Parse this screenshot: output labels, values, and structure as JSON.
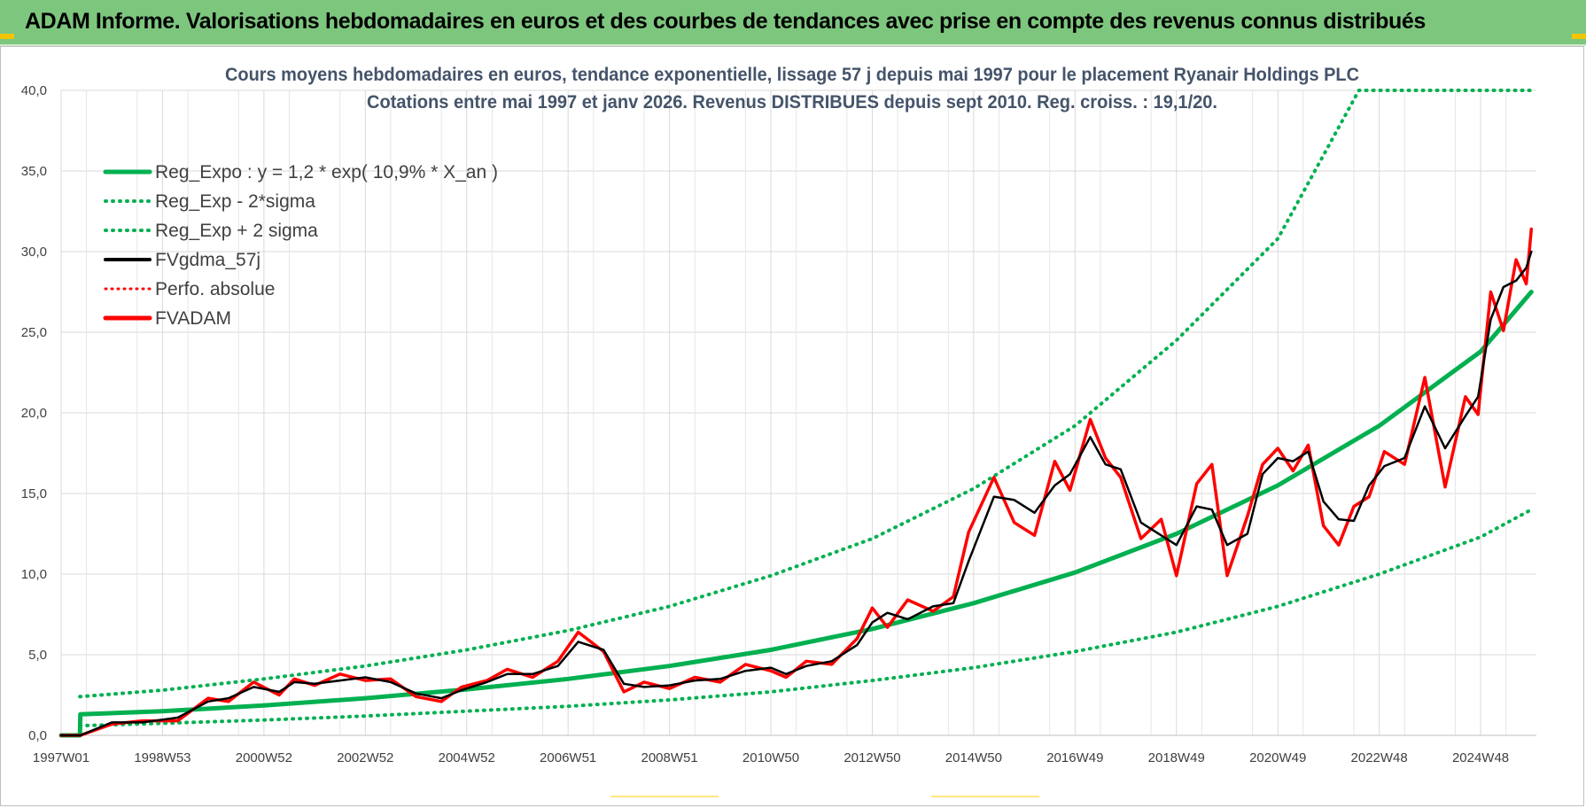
{
  "header": {
    "title": "ADAM Informe. Valorisations hebdomadaires en euros et des courbes de tendances avec prise en compte des revenus connus distribués"
  },
  "colors": {
    "header_bg": "#7dc67e",
    "green": "#00b050",
    "red": "#ff0000",
    "black": "#000000",
    "title_text": "#44546a"
  },
  "chart_data": {
    "type": "line",
    "title": "Cours moyens hebdomadaires en euros, tendance exponentielle, lissage 57 j depuis mai 1997 pour le placement Ryanair Holdings PLC",
    "subtitle": "Cotations entre mai 1997 et janv 2026. Revenus DISTRIBUES depuis sept 2010. Reg. croiss. : 19,1/20.",
    "xlabel": "",
    "ylabel": "",
    "ylim": [
      0,
      40
    ],
    "xlim": [
      1997.0,
      2026.1
    ],
    "grid": true,
    "legend_position": "top-left",
    "y_ticks": [
      "0,0",
      "5,0",
      "10,0",
      "15,0",
      "20,0",
      "25,0",
      "30,0",
      "35,0",
      "40,0"
    ],
    "x_ticks": [
      {
        "label": "1997W01",
        "x": 1997.0
      },
      {
        "label": "1998W53",
        "x": 1999.0
      },
      {
        "label": "2000W52",
        "x": 2001.0
      },
      {
        "label": "2002W52",
        "x": 2003.0
      },
      {
        "label": "2004W52",
        "x": 2005.0
      },
      {
        "label": "2006W51",
        "x": 2007.0
      },
      {
        "label": "2008W51",
        "x": 2009.0
      },
      {
        "label": "2010W50",
        "x": 2011.0
      },
      {
        "label": "2012W50",
        "x": 2013.0
      },
      {
        "label": "2014W50",
        "x": 2015.0
      },
      {
        "label": "2016W49",
        "x": 2017.0
      },
      {
        "label": "2018W49",
        "x": 2019.0
      },
      {
        "label": "2020W49",
        "x": 2021.0
      },
      {
        "label": "2022W48",
        "x": 2023.0
      },
      {
        "label": "2024W48",
        "x": 2025.0
      }
    ],
    "legend": [
      {
        "name": "Reg_Expo : y = 1,2 * exp( 10,9% *  X_an )",
        "color": "#00b050",
        "style": "solid"
      },
      {
        "name": "Reg_Exp - 2*sigma",
        "color": "#00b050",
        "style": "dotted"
      },
      {
        "name": "Reg_Exp + 2 sigma",
        "color": "#00b050",
        "style": "dotted"
      },
      {
        "name": "FVgdma_57j",
        "color": "#000000",
        "style": "solid"
      },
      {
        "name": "Perfo. absolue",
        "color": "#ff0000",
        "style": "dotted"
      },
      {
        "name": "FVADAM",
        "color": "#ff0000",
        "style": "solid"
      }
    ],
    "series": [
      {
        "name": "Reg_Expo : y = 1,2 * exp( 10,9% *  X_an )",
        "x": [
          1997.0,
          1997.37,
          1997.38,
          1999.0,
          2001.0,
          2003.0,
          2005.0,
          2007.0,
          2009.0,
          2011.0,
          2013.0,
          2015.0,
          2017.0,
          2019.0,
          2021.0,
          2023.0,
          2025.0,
          2026.0
        ],
        "y": [
          0,
          0,
          1.3,
          1.5,
          1.85,
          2.3,
          2.85,
          3.5,
          4.3,
          5.3,
          6.6,
          8.2,
          10.1,
          12.5,
          15.5,
          19.2,
          23.8,
          27.5
        ]
      },
      {
        "name": "Reg_Exp - 2*sigma",
        "x": [
          1997.37,
          1999.0,
          2001.0,
          2003.0,
          2005.0,
          2007.0,
          2009.0,
          2011.0,
          2013.0,
          2015.0,
          2017.0,
          2019.0,
          2021.0,
          2023.0,
          2025.0,
          2026.0
        ],
        "y": [
          0.6,
          0.75,
          0.95,
          1.2,
          1.5,
          1.8,
          2.2,
          2.7,
          3.4,
          4.2,
          5.2,
          6.4,
          8.0,
          10.0,
          12.3,
          14.0
        ]
      },
      {
        "name": "Reg_Exp + 2 sigma",
        "x": [
          1997.37,
          1999.0,
          2001.0,
          2003.0,
          2005.0,
          2007.0,
          2009.0,
          2011.0,
          2013.0,
          2015.0,
          2017.0,
          2019.0,
          2021.0,
          2022.6,
          2026.0
        ],
        "y": [
          2.4,
          2.8,
          3.5,
          4.3,
          5.3,
          6.5,
          8.0,
          9.9,
          12.2,
          15.3,
          19.2,
          24.5,
          30.8,
          40.0,
          40.0
        ]
      },
      {
        "name": "FVgdma_57j",
        "x": [
          1997.0,
          1997.38,
          1998.0,
          1998.6,
          1999.3,
          1999.9,
          2000.3,
          2000.8,
          2001.3,
          2001.6,
          2002.0,
          2002.5,
          2003.0,
          2003.5,
          2004.0,
          2004.5,
          2004.9,
          2005.4,
          2005.8,
          2006.3,
          2006.8,
          2007.2,
          2007.7,
          2008.1,
          2008.5,
          2009.0,
          2009.5,
          2010.0,
          2010.5,
          2011.0,
          2011.3,
          2011.7,
          2012.2,
          2012.7,
          2013.0,
          2013.3,
          2013.7,
          2014.2,
          2014.6,
          2014.9,
          2015.4,
          2015.8,
          2016.2,
          2016.6,
          2016.9,
          2017.3,
          2017.6,
          2017.9,
          2018.3,
          2018.7,
          2019.0,
          2019.4,
          2019.7,
          2020.0,
          2020.4,
          2020.7,
          2021.0,
          2021.3,
          2021.6,
          2021.9,
          2022.2,
          2022.5,
          2022.8,
          2023.1,
          2023.5,
          2023.9,
          2024.3,
          2024.7,
          2024.95,
          2025.2,
          2025.45,
          2025.7,
          2025.9,
          2026.0
        ],
        "y": [
          0,
          0,
          0.8,
          0.8,
          1.1,
          2.1,
          2.3,
          3.0,
          2.7,
          3.3,
          3.2,
          3.4,
          3.6,
          3.3,
          2.6,
          2.3,
          2.8,
          3.3,
          3.8,
          3.8,
          4.3,
          5.8,
          5.3,
          3.2,
          3.0,
          3.1,
          3.4,
          3.5,
          4.0,
          4.2,
          3.8,
          4.3,
          4.6,
          5.6,
          7.0,
          7.6,
          7.2,
          8.0,
          8.2,
          10.8,
          14.8,
          14.6,
          13.8,
          15.5,
          16.2,
          18.5,
          16.8,
          16.5,
          13.2,
          12.4,
          11.8,
          14.2,
          14.0,
          11.8,
          12.5,
          16.2,
          17.2,
          17.0,
          17.6,
          14.5,
          13.4,
          13.3,
          15.5,
          16.7,
          17.2,
          20.4,
          17.8,
          19.8,
          21.0,
          25.8,
          27.8,
          28.2,
          29.0,
          30.0
        ]
      },
      {
        "name": "FVADAM",
        "x": [
          1997.0,
          1997.38,
          1998.0,
          1998.6,
          1999.3,
          1999.9,
          2000.3,
          2000.8,
          2001.3,
          2001.6,
          2002.0,
          2002.5,
          2003.0,
          2003.5,
          2004.0,
          2004.5,
          2004.9,
          2005.4,
          2005.8,
          2006.3,
          2006.8,
          2007.2,
          2007.7,
          2008.1,
          2008.5,
          2009.0,
          2009.5,
          2010.0,
          2010.5,
          2011.0,
          2011.3,
          2011.7,
          2012.2,
          2012.7,
          2013.0,
          2013.3,
          2013.7,
          2014.2,
          2014.6,
          2014.9,
          2015.4,
          2015.8,
          2016.2,
          2016.6,
          2016.9,
          2017.3,
          2017.6,
          2017.9,
          2018.3,
          2018.7,
          2019.0,
          2019.4,
          2019.7,
          2020.0,
          2020.4,
          2020.7,
          2021.0,
          2021.3,
          2021.6,
          2021.9,
          2022.2,
          2022.5,
          2022.8,
          2023.1,
          2023.5,
          2023.9,
          2024.3,
          2024.7,
          2024.95,
          2025.2,
          2025.45,
          2025.7,
          2025.9,
          2026.0
        ],
        "y": [
          0,
          0,
          0.7,
          0.9,
          0.9,
          2.3,
          2.1,
          3.3,
          2.5,
          3.5,
          3.1,
          3.8,
          3.4,
          3.5,
          2.4,
          2.1,
          3.0,
          3.4,
          4.1,
          3.6,
          4.6,
          6.4,
          5.2,
          2.7,
          3.3,
          2.9,
          3.6,
          3.3,
          4.4,
          4.0,
          3.6,
          4.6,
          4.4,
          6.0,
          7.9,
          6.7,
          8.4,
          7.7,
          8.6,
          12.6,
          16.0,
          13.2,
          12.4,
          17.0,
          15.2,
          19.6,
          17.2,
          16.0,
          12.2,
          13.4,
          9.9,
          15.6,
          16.8,
          9.9,
          13.6,
          16.8,
          17.8,
          16.4,
          18.0,
          13.0,
          11.8,
          14.2,
          14.8,
          17.6,
          16.8,
          22.2,
          15.4,
          21.0,
          19.9,
          27.5,
          25.1,
          29.5,
          28.0,
          31.4
        ]
      }
    ]
  }
}
